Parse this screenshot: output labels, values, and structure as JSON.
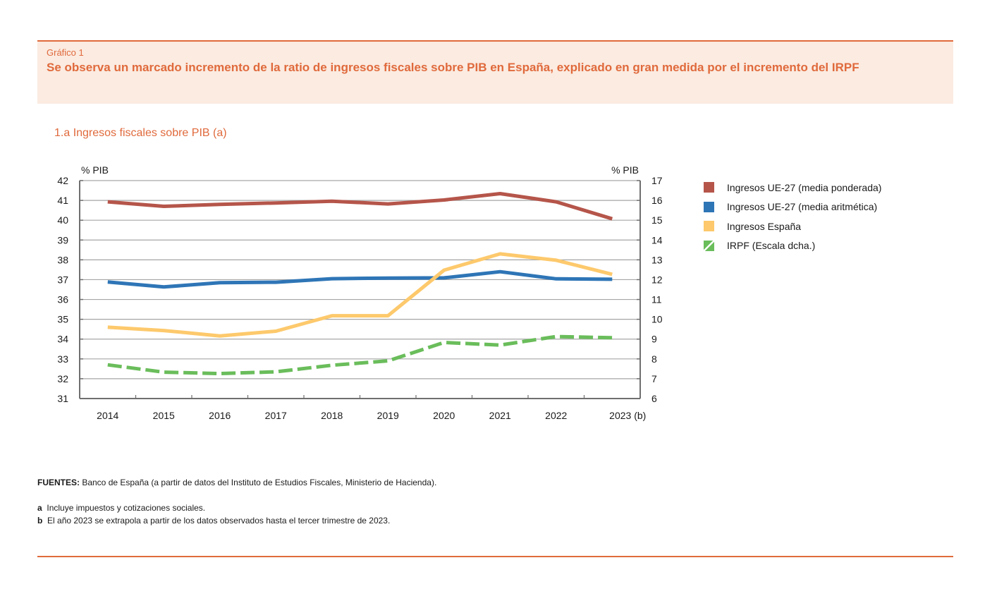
{
  "header": {
    "figure_label": "Gráfico 1",
    "title": "Se observa un marcado incremento de la ratio de ingresos fiscales sobre PIB en España, explicado en gran medida por el incremento del IRPF"
  },
  "chart_data": {
    "type": "line",
    "title": "1.a  Ingresos fiscales sobre PIB (a)",
    "xlabel": "",
    "ylabel": "% PIB",
    "ylabel_right": "% PIB",
    "categories": [
      "2014",
      "2015",
      "2016",
      "2017",
      "2018",
      "2019",
      "2020",
      "2021",
      "2022",
      "2023 (b)"
    ],
    "ylim": [
      31,
      42
    ],
    "ylim_right": [
      6,
      17
    ],
    "yticks": [
      31,
      32,
      33,
      34,
      35,
      36,
      37,
      38,
      39,
      40,
      41,
      42
    ],
    "yticks_right": [
      6,
      7,
      8,
      9,
      10,
      11,
      12,
      13,
      14,
      15,
      16,
      17
    ],
    "grid": true,
    "legend_position": "right",
    "series": [
      {
        "name": "Ingresos UE-27 (media ponderada)",
        "axis": "left",
        "color": "#b5554a",
        "style": "solid",
        "values": [
          40.93,
          40.7,
          40.8,
          40.87,
          40.96,
          40.82,
          41.02,
          41.34,
          40.93,
          40.07
        ]
      },
      {
        "name": "Ingresos UE-27 (media aritmética)",
        "axis": "left",
        "color": "#2e75b6",
        "style": "solid",
        "values": [
          36.88,
          36.63,
          36.85,
          36.87,
          37.05,
          37.08,
          37.09,
          37.4,
          37.04,
          37.02
        ]
      },
      {
        "name": "Ingresos España",
        "axis": "left",
        "color": "#fdc96c",
        "style": "solid",
        "values": [
          34.6,
          34.43,
          34.16,
          34.4,
          35.18,
          35.18,
          37.48,
          38.3,
          37.98,
          37.27
        ]
      },
      {
        "name": "IRPF (Escala dcha.)",
        "axis": "right",
        "color": "#6abd5b",
        "style": "dashed",
        "values": [
          7.7,
          7.33,
          7.26,
          7.35,
          7.68,
          7.9,
          8.83,
          8.7,
          9.13,
          9.07
        ]
      }
    ]
  },
  "notes": {
    "sources_label": "FUENTES:",
    "sources_text": " Banco de España (a partir de datos del Instituto de Estudios Fiscales, Ministerio de Hacienda).",
    "footnotes": [
      {
        "key": "a",
        "text": "Incluye impuestos y cotizaciones sociales."
      },
      {
        "key": "b",
        "text": "El año 2023 se extrapola a partir de los datos observados hasta el tercer trimestre de 2023."
      }
    ]
  }
}
